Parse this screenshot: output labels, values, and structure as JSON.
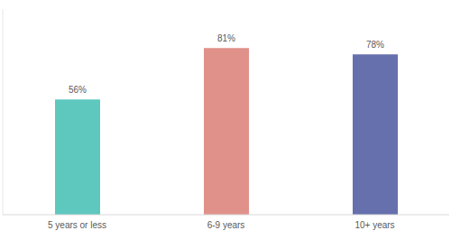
{
  "chart_data": {
    "type": "bar",
    "categories": [
      "5 years or less",
      "6-9 years",
      "10+ years"
    ],
    "values": [
      56,
      81,
      78
    ],
    "value_labels": [
      "56%",
      "81%",
      "78%"
    ],
    "colors": [
      "#5ec8bf",
      "#e0928a",
      "#6670ad"
    ],
    "ylim": [
      0,
      100
    ],
    "data_labels": true,
    "grid": false,
    "tick_labels": "x"
  }
}
